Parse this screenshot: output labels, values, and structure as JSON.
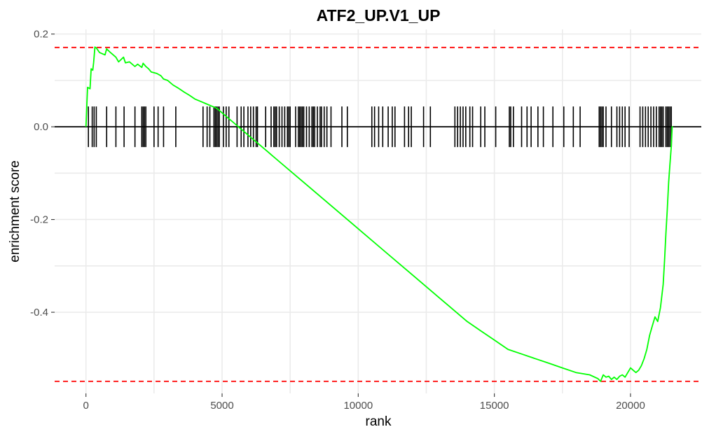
{
  "chart_data": {
    "type": "line",
    "title": "ATF2_UP.V1_UP",
    "xlabel": "rank",
    "ylabel": "enrichment score",
    "xlim": [
      -1150,
      22600
    ],
    "ylim": [
      -0.575,
      0.21
    ],
    "x_ticks": [
      0,
      5000,
      10000,
      15000,
      20000
    ],
    "x_tick_labels": [
      "0",
      "5000",
      "10000",
      "15000",
      "20000"
    ],
    "y_ticks": [
      0.2,
      0.0,
      -0.2,
      -0.4
    ],
    "y_tick_labels": [
      "0.2",
      "0.0",
      "-0.2",
      "-0.4"
    ],
    "grid": true,
    "legend": "none",
    "colors": {
      "curve": "#00ff00",
      "bounds": "#ff0000",
      "zero_line": "#000000",
      "hits": "#000000",
      "grid": "#ebebeb"
    },
    "bounds": {
      "max_es": 0.171,
      "min_es": -0.549
    },
    "series": [
      {
        "x": [
          0,
          30,
          60,
          150,
          190,
          250,
          280,
          330,
          380,
          500,
          700,
          760,
          900,
          1100,
          1200,
          1380,
          1450,
          1600,
          1800,
          1900,
          2050,
          2100,
          2200,
          2300,
          2400,
          2600,
          2750,
          2850,
          3000,
          3200,
          3400,
          3600,
          3800,
          4000,
          4200,
          4400,
          4600,
          4800,
          5000,
          5200,
          5400,
          5600,
          5800,
          6000,
          6200,
          6400,
          6600,
          6800,
          7000,
          8000,
          9000,
          10000,
          11000,
          12000,
          13000,
          14000,
          14500,
          15000,
          15500,
          16000,
          16500,
          17000,
          17500,
          18000,
          18500,
          18800,
          18900,
          19000,
          19100,
          19200,
          19300,
          19400,
          19500,
          19600,
          19700,
          19800,
          19900,
          20000,
          20100,
          20200,
          20300,
          20400,
          20500,
          20600,
          20700,
          20800,
          20900,
          21000,
          21100,
          21200,
          21250,
          21300,
          21350,
          21400,
          21450,
          21500,
          21530,
          21560
        ],
        "y": [
          0.0,
          0.045,
          0.085,
          0.082,
          0.125,
          0.122,
          0.138,
          0.172,
          0.17,
          0.16,
          0.155,
          0.168,
          0.16,
          0.15,
          0.14,
          0.15,
          0.138,
          0.14,
          0.13,
          0.135,
          0.128,
          0.137,
          0.13,
          0.125,
          0.118,
          0.115,
          0.11,
          0.103,
          0.1,
          0.09,
          0.083,
          0.075,
          0.068,
          0.06,
          0.055,
          0.05,
          0.045,
          0.04,
          0.03,
          0.02,
          0.01,
          0.0,
          -0.01,
          -0.02,
          -0.03,
          -0.04,
          -0.05,
          -0.06,
          -0.07,
          -0.12,
          -0.17,
          -0.22,
          -0.27,
          -0.32,
          -0.37,
          -0.42,
          -0.44,
          -0.46,
          -0.48,
          -0.49,
          -0.5,
          -0.51,
          -0.52,
          -0.53,
          -0.535,
          -0.543,
          -0.549,
          -0.535,
          -0.54,
          -0.538,
          -0.545,
          -0.54,
          -0.545,
          -0.538,
          -0.535,
          -0.54,
          -0.53,
          -0.52,
          -0.525,
          -0.53,
          -0.525,
          -0.515,
          -0.5,
          -0.48,
          -0.45,
          -0.43,
          -0.41,
          -0.42,
          -0.39,
          -0.34,
          -0.29,
          -0.23,
          -0.18,
          -0.12,
          -0.08,
          -0.04,
          0.0,
          0.0
        ]
      }
    ],
    "hits": [
      90,
      230,
      300,
      380,
      760,
      1100,
      1400,
      1800,
      2050,
      2100,
      2150,
      2200,
      2500,
      2650,
      2850,
      3300,
      4300,
      4450,
      4550,
      4700,
      4750,
      4800,
      4850,
      4900,
      5050,
      5150,
      5250,
      5550,
      5700,
      5800,
      5950,
      6050,
      6150,
      6250,
      6300,
      6600,
      6800,
      6900,
      6950,
      7000,
      7100,
      7200,
      7300,
      7400,
      7450,
      7500,
      7700,
      7800,
      7850,
      7900,
      7950,
      8000,
      8100,
      8200,
      8300,
      8350,
      8400,
      8500,
      8600,
      8650,
      8750,
      8850,
      9000,
      9400,
      9600,
      10500,
      10600,
      10750,
      10900,
      11100,
      11250,
      11350,
      11700,
      11850,
      11950,
      12400,
      12650,
      13550,
      13650,
      13750,
      13850,
      13950,
      14100,
      14200,
      14500,
      14650,
      15050,
      15550,
      15600,
      15700,
      16000,
      16200,
      16350,
      16600,
      16800,
      17150,
      17550,
      17900,
      18150,
      18850,
      18900,
      18950,
      19000,
      19100,
      19300,
      19500,
      19600,
      19700,
      19800,
      19950,
      20350,
      20450,
      20550,
      20650,
      20750,
      20850,
      20950,
      21050,
      21100,
      21150,
      21200,
      21300,
      21350,
      21400,
      21450,
      21500
    ]
  }
}
